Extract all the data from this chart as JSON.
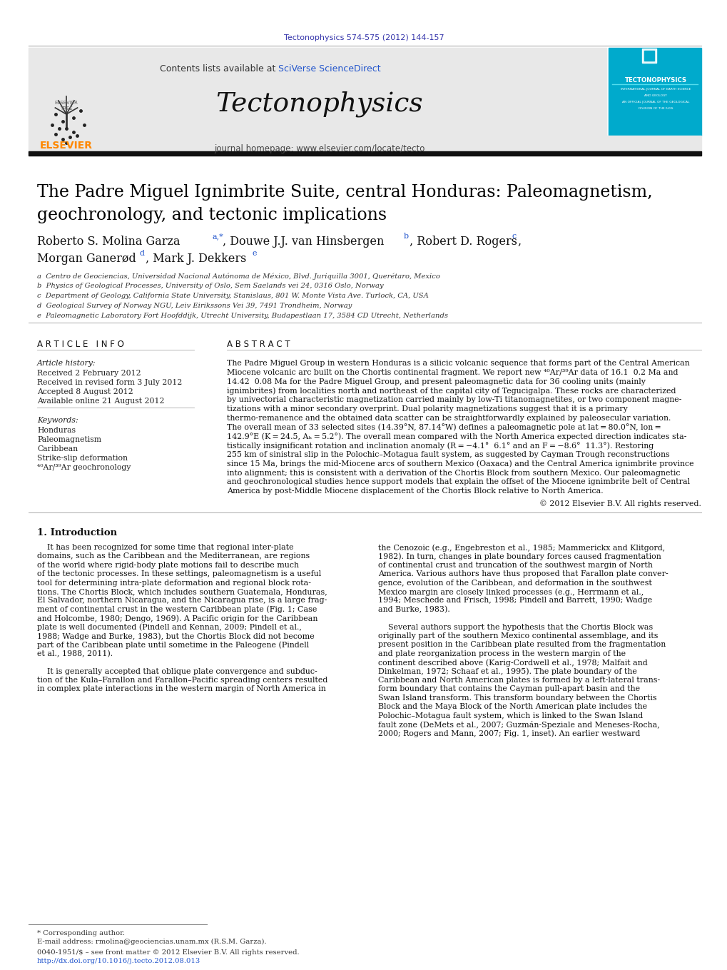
{
  "journal_ref": "Tectonophysics 574-575 (2012) 144-157",
  "journal_ref_color": "#3333aa",
  "contents_text": "Contents lists available at ",
  "sciverse_text": "SciVerse ScienceDirect",
  "sciverse_color": "#2255cc",
  "journal_name": "Tectonophysics",
  "journal_homepage": "journal homepage: www.elsevier.com/locate/tecto",
  "elsevier_color": "#ff8800",
  "header_bg": "#e8e8e8",
  "tecto_bg": "#00aacc",
  "black_bar_color": "#111111",
  "paper_title_line1": "The Padre Miguel Ignimbrite Suite, central Honduras: Paleomagnetism,",
  "paper_title_line2": "geochronology, and tectonic implications",
  "affil_a": "a  Centro de Geociencias, Universidad Nacional Autónoma de México, Blvd. Juriquilla 3001, Querétaro, Mexico",
  "affil_b": "b  Physics of Geological Processes, University of Oslo, Sem Saelands vei 24, 0316 Oslo, Norway",
  "affil_c": "c  Department of Geology, California State University, Stanislaus, 801 W. Monte Vista Ave. Turlock, CA, USA",
  "affil_d": "d  Geological Survey of Norway NGU, Leiv Eirikssons Vei 39, 7491 Trondheim, Norway",
  "affil_e": "e  Paleomagnetic Laboratory Fort Hoofddijk, Utrecht University, Budapestlaan 17, 3584 CD Utrecht, Netherlands",
  "article_info_header": "A R T I C L E   I N F O",
  "abstract_header": "A B S T R A C T",
  "article_history_label": "Article history:",
  "received1": "Received 2 February 2012",
  "received2": "Received in revised form 3 July 2012",
  "accepted": "Accepted 8 August 2012",
  "available": "Available online 21 August 2012",
  "keywords_label": "Keywords:",
  "kw1": "Honduras",
  "kw2": "Paleomagnetism",
  "kw3": "Caribbean",
  "kw4": "Strike-slip deformation",
  "kw5": "⁴⁰Ar/³⁹Ar geochronology",
  "abstract_text_lines": [
    "The Padre Miguel Group in western Honduras is a silicic volcanic sequence that forms part of the Central American",
    "Miocene volcanic arc built on the Chortis continental fragment. We report new ⁴⁰Ar/³⁹Ar data of 16.1  0.2 Ma and",
    "14.42  0.08 Ma for the Padre Miguel Group, and present paleomagnetic data for 36 cooling units (mainly",
    "ignimbrites) from localities north and northeast of the capital city of Tegucigalpa. These rocks are characterized",
    "by univectorial characteristic magnetization carried mainly by low-Ti titanomagnetites, or two component magne-",
    "tizations with a minor secondary overprint. Dual polarity magnetizations suggest that it is a primary",
    "thermo-remanence and the obtained data scatter can be straightforwardly explained by paleosecular variation.",
    "The overall mean of 33 selected sites (14.39°N, 87.14°W) defines a paleomagnetic pole at lat = 80.0°N, lon =",
    "142.9°E (K = 24.5, Aₕ = 5.2°). The overall mean compared with the North America expected direction indicates sta-",
    "tistically insignificant rotation and inclination anomaly (R = −4.1°  6.1° and an F = −8.6°  11.3°). Restoring",
    "255 km of sinistral slip in the Polochic–Motagua fault system, as suggested by Cayman Trough reconstructions",
    "since 15 Ma, brings the mid-Miocene arcs of southern Mexico (Oaxaca) and the Central America ignimbrite province",
    "into alignment; this is consistent with a derivation of the Chortis Block from southern Mexico. Our paleomagnetic",
    "and geochronological studies hence support models that explain the offset of the Miocene ignimbrite belt of Central",
    "America by post-Middle Miocene displacement of the Chortis Block relative to North America."
  ],
  "copyright": "© 2012 Elsevier B.V. All rights reserved.",
  "section1_header": "1. Introduction",
  "intro_left_lines": [
    "    It has been recognized for some time that regional inter-plate",
    "domains, such as the Caribbean and the Mediterranean, are regions",
    "of the world where rigid-body plate motions fail to describe much",
    "of the tectonic processes. In these settings, paleomagnetism is a useful",
    "tool for determining intra-plate deformation and regional block rota-",
    "tions. The Chortis Block, which includes southern Guatemala, Honduras,",
    "El Salvador, northern Nicaragua, and the Nicaragua rise, is a large frag-",
    "ment of continental crust in the western Caribbean plate (Fig. 1; Case",
    "and Holcombe, 1980; Dengo, 1969). A Pacific origin for the Caribbean",
    "plate is well documented (Pindell and Kennan, 2009; Pindell et al.,",
    "1988; Wadge and Burke, 1983), but the Chortis Block did not become",
    "part of the Caribbean plate until sometime in the Paleogene (Pindell",
    "et al., 1988, 2011).",
    "",
    "    It is generally accepted that oblique plate convergence and subduc-",
    "tion of the Kula–Farallon and Farallon–Pacific spreading centers resulted",
    "in complex plate interactions in the western margin of North America in"
  ],
  "intro_right_lines": [
    "the Cenozoic (e.g., Engebreston et al., 1985; Mammerickx and Klitgord,",
    "1982). In turn, changes in plate boundary forces caused fragmentation",
    "of continental crust and truncation of the southwest margin of North",
    "America. Various authors have thus proposed that Farallon plate conver-",
    "gence, evolution of the Caribbean, and deformation in the southwest",
    "Mexico margin are closely linked processes (e.g., Herrmann et al.,",
    "1994; Meschede and Frisch, 1998; Pindell and Barrett, 1990; Wadge",
    "and Burke, 1983).",
    "",
    "    Several authors support the hypothesis that the Chortis Block was",
    "originally part of the southern Mexico continental assemblage, and its",
    "present position in the Caribbean plate resulted from the fragmentation",
    "and plate reorganization process in the western margin of the",
    "continent described above (Karig-Cordwell et al., 1978; Malfait and",
    "Dinkelman, 1972; Schaaf et al., 1995). The plate boundary of the",
    "Caribbean and North American plates is formed by a left-lateral trans-",
    "form boundary that contains the Cayman pull-apart basin and the",
    "Swan Island transform. This transform boundary between the Chortis",
    "Block and the Maya Block of the North American plate includes the",
    "Polochic–Motagua fault system, which is linked to the Swan Island",
    "fault zone (DeMets et al., 2007; Guzmán-Speziale and Meneses-Rocha,",
    "2000; Rogers and Mann, 2007; Fig. 1, inset). An earlier westward"
  ],
  "footnote_star": "* Corresponding author.",
  "footnote_email": "E-mail address: rmolina@geociencias.unam.mx (R.S.M. Garza).",
  "footnote_issn": "0040-1951/$ – see front matter © 2012 Elsevier B.V. All rights reserved.",
  "footnote_doi": "http://dx.doi.org/10.1016/j.tecto.2012.08.013",
  "link_color": "#2255cc",
  "bg_color": "#ffffff",
  "text_color": "#000000",
  "title_color": "#000000"
}
